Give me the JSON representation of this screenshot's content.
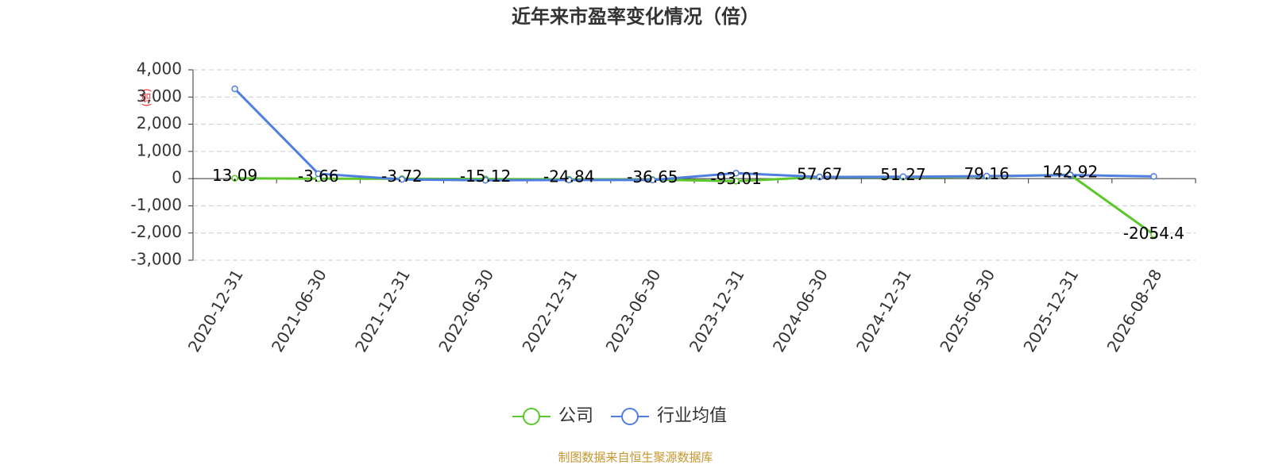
{
  "chart_data": {
    "type": "line",
    "title": "近年来市盈率变化情况（倍）",
    "y_label": "(倍)",
    "categories": [
      "2020-12-31",
      "2021-06-30",
      "2021-12-31",
      "2022-06-30",
      "2022-12-31",
      "2023-06-30",
      "2023-12-31",
      "2024-06-30",
      "2024-12-31",
      "2025-06-30",
      "2025-12-31",
      "2026-08-28"
    ],
    "series": [
      {
        "name": "公司",
        "color": "#5cc72a",
        "values": [
          13.09,
          -3.66,
          -3.72,
          -15.12,
          -24.84,
          -36.65,
          -93.01,
          57.67,
          51.27,
          79.16,
          142.92,
          -2054.4
        ]
      },
      {
        "name": "行业均值",
        "color": "#4e7fe0",
        "values": [
          3300,
          180,
          -30,
          -60,
          -50,
          -50,
          200,
          60,
          70,
          90,
          130,
          80
        ]
      }
    ],
    "ylim": [
      -3000,
      4000
    ],
    "yticks": [
      {
        "value": -3000,
        "label": "-3,000"
      },
      {
        "value": -2000,
        "label": "-2,000"
      },
      {
        "value": -1000,
        "label": "-1,000"
      },
      0,
      {
        "value": 1000,
        "label": "1,000"
      },
      {
        "value": 2000,
        "label": "2,000"
      },
      {
        "value": 3000,
        "label": "3,000"
      },
      {
        "value": 4000,
        "label": "4,000"
      }
    ],
    "grid": true,
    "source": "制图数据来自恒生聚源数据库"
  }
}
